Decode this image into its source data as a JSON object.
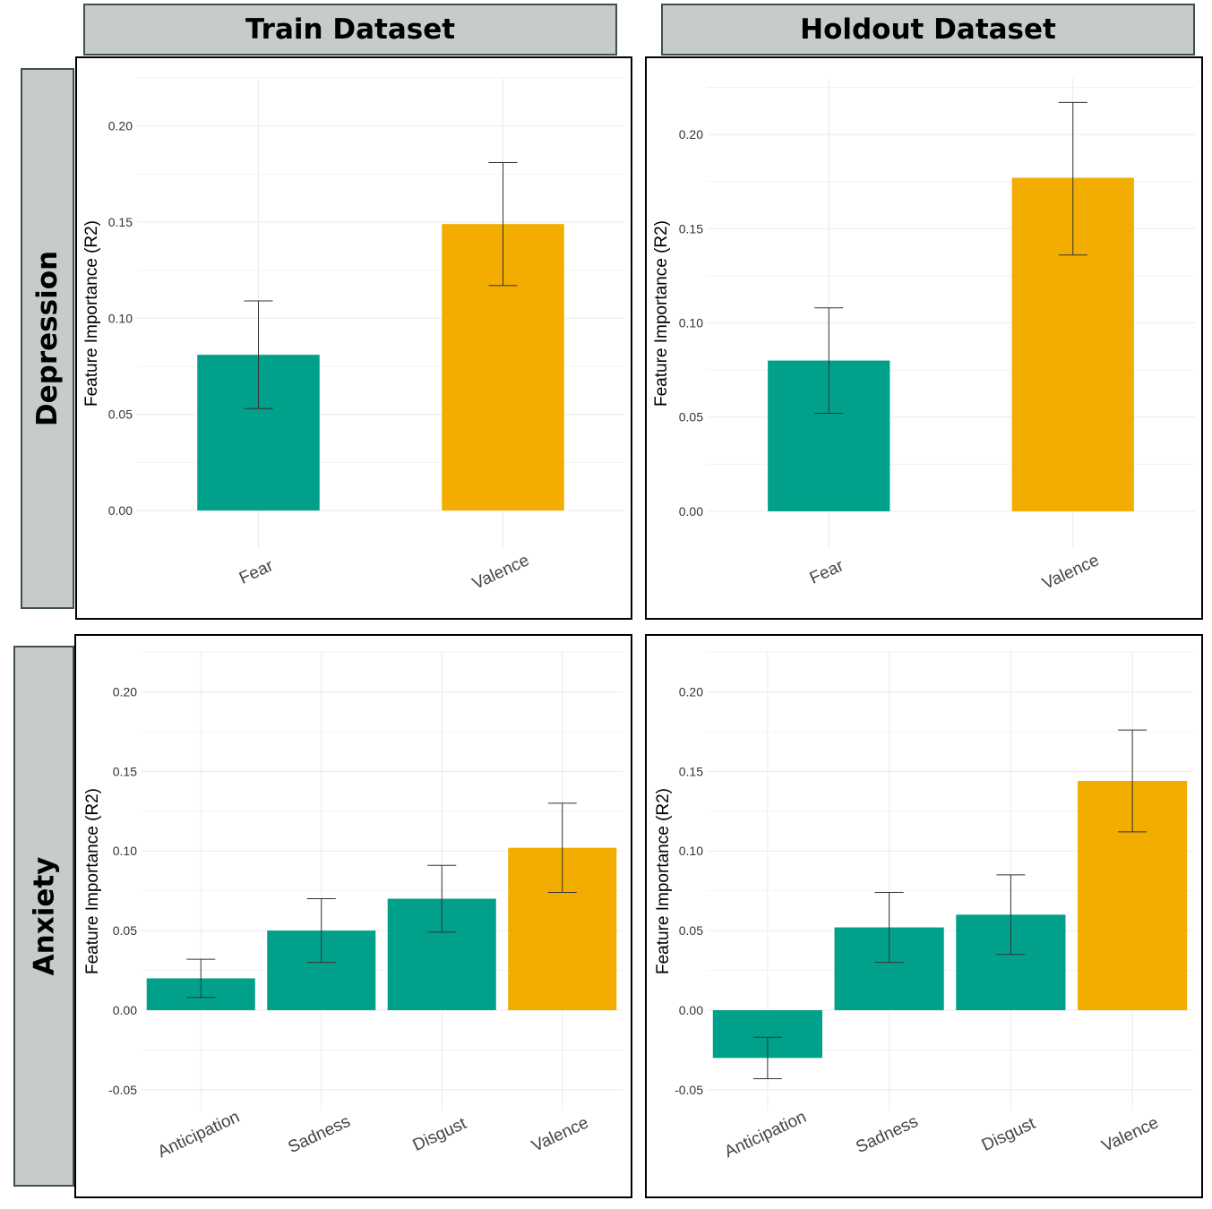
{
  "columns": [
    "Train Dataset",
    "Holdout Dataset"
  ],
  "rows": [
    "Depression",
    "Anxiety"
  ],
  "colors": {
    "green": "#00a08a",
    "orange": "#f2ad00",
    "grid": "#ebebeb",
    "strip": "#c6cbcb"
  },
  "chart_data": [
    {
      "type": "bar",
      "row": "Depression",
      "column": "Train Dataset",
      "categories": [
        "Fear",
        "Valence"
      ],
      "values": [
        0.081,
        0.149
      ],
      "error_low": [
        0.053,
        0.117
      ],
      "error_high": [
        0.109,
        0.181
      ],
      "bar_colors": [
        "green",
        "orange"
      ],
      "ylabel": "Feature Importance (R2)",
      "ylim": [
        -0.02,
        0.225
      ],
      "yticks": [
        "0.00",
        "0.05",
        "0.10",
        "0.15",
        "0.20"
      ],
      "grid": true
    },
    {
      "type": "bar",
      "row": "Depression",
      "column": "Holdout Dataset",
      "categories": [
        "Fear",
        "Valence"
      ],
      "values": [
        0.08,
        0.177
      ],
      "error_low": [
        0.052,
        0.136
      ],
      "error_high": [
        0.108,
        0.217
      ],
      "bar_colors": [
        "green",
        "orange"
      ],
      "ylabel": "Feature Importance (R2)",
      "ylim": [
        -0.02,
        0.23
      ],
      "yticks": [
        "0.00",
        "0.05",
        "0.10",
        "0.15",
        "0.20"
      ],
      "grid": true
    },
    {
      "type": "bar",
      "row": "Anxiety",
      "column": "Train Dataset",
      "categories": [
        "Anticipation",
        "Sadness",
        "Disgust",
        "Valence"
      ],
      "values": [
        0.02,
        0.05,
        0.07,
        0.102
      ],
      "error_low": [
        0.008,
        0.03,
        0.049,
        0.074
      ],
      "error_high": [
        0.032,
        0.07,
        0.091,
        0.13
      ],
      "bar_colors": [
        "green",
        "green",
        "green",
        "orange"
      ],
      "ylabel": "Feature Importance (R2)",
      "ylim": [
        -0.063,
        0.225
      ],
      "yticks": [
        "-0.05",
        "0.00",
        "0.05",
        "0.10",
        "0.15",
        "0.20"
      ],
      "grid": true
    },
    {
      "type": "bar",
      "row": "Anxiety",
      "column": "Holdout Dataset",
      "categories": [
        "Anticipation",
        "Sadness",
        "Disgust",
        "Valence"
      ],
      "values": [
        -0.03,
        0.052,
        0.06,
        0.144
      ],
      "error_low": [
        -0.043,
        0.03,
        0.035,
        0.112
      ],
      "error_high": [
        -0.017,
        0.074,
        0.085,
        0.176
      ],
      "bar_colors": [
        "green",
        "green",
        "green",
        "orange"
      ],
      "ylabel": "Feature Importance (R2)",
      "ylim": [
        -0.063,
        0.225
      ],
      "yticks": [
        "-0.05",
        "0.00",
        "0.05",
        "0.10",
        "0.15",
        "0.20"
      ],
      "grid": true
    }
  ]
}
